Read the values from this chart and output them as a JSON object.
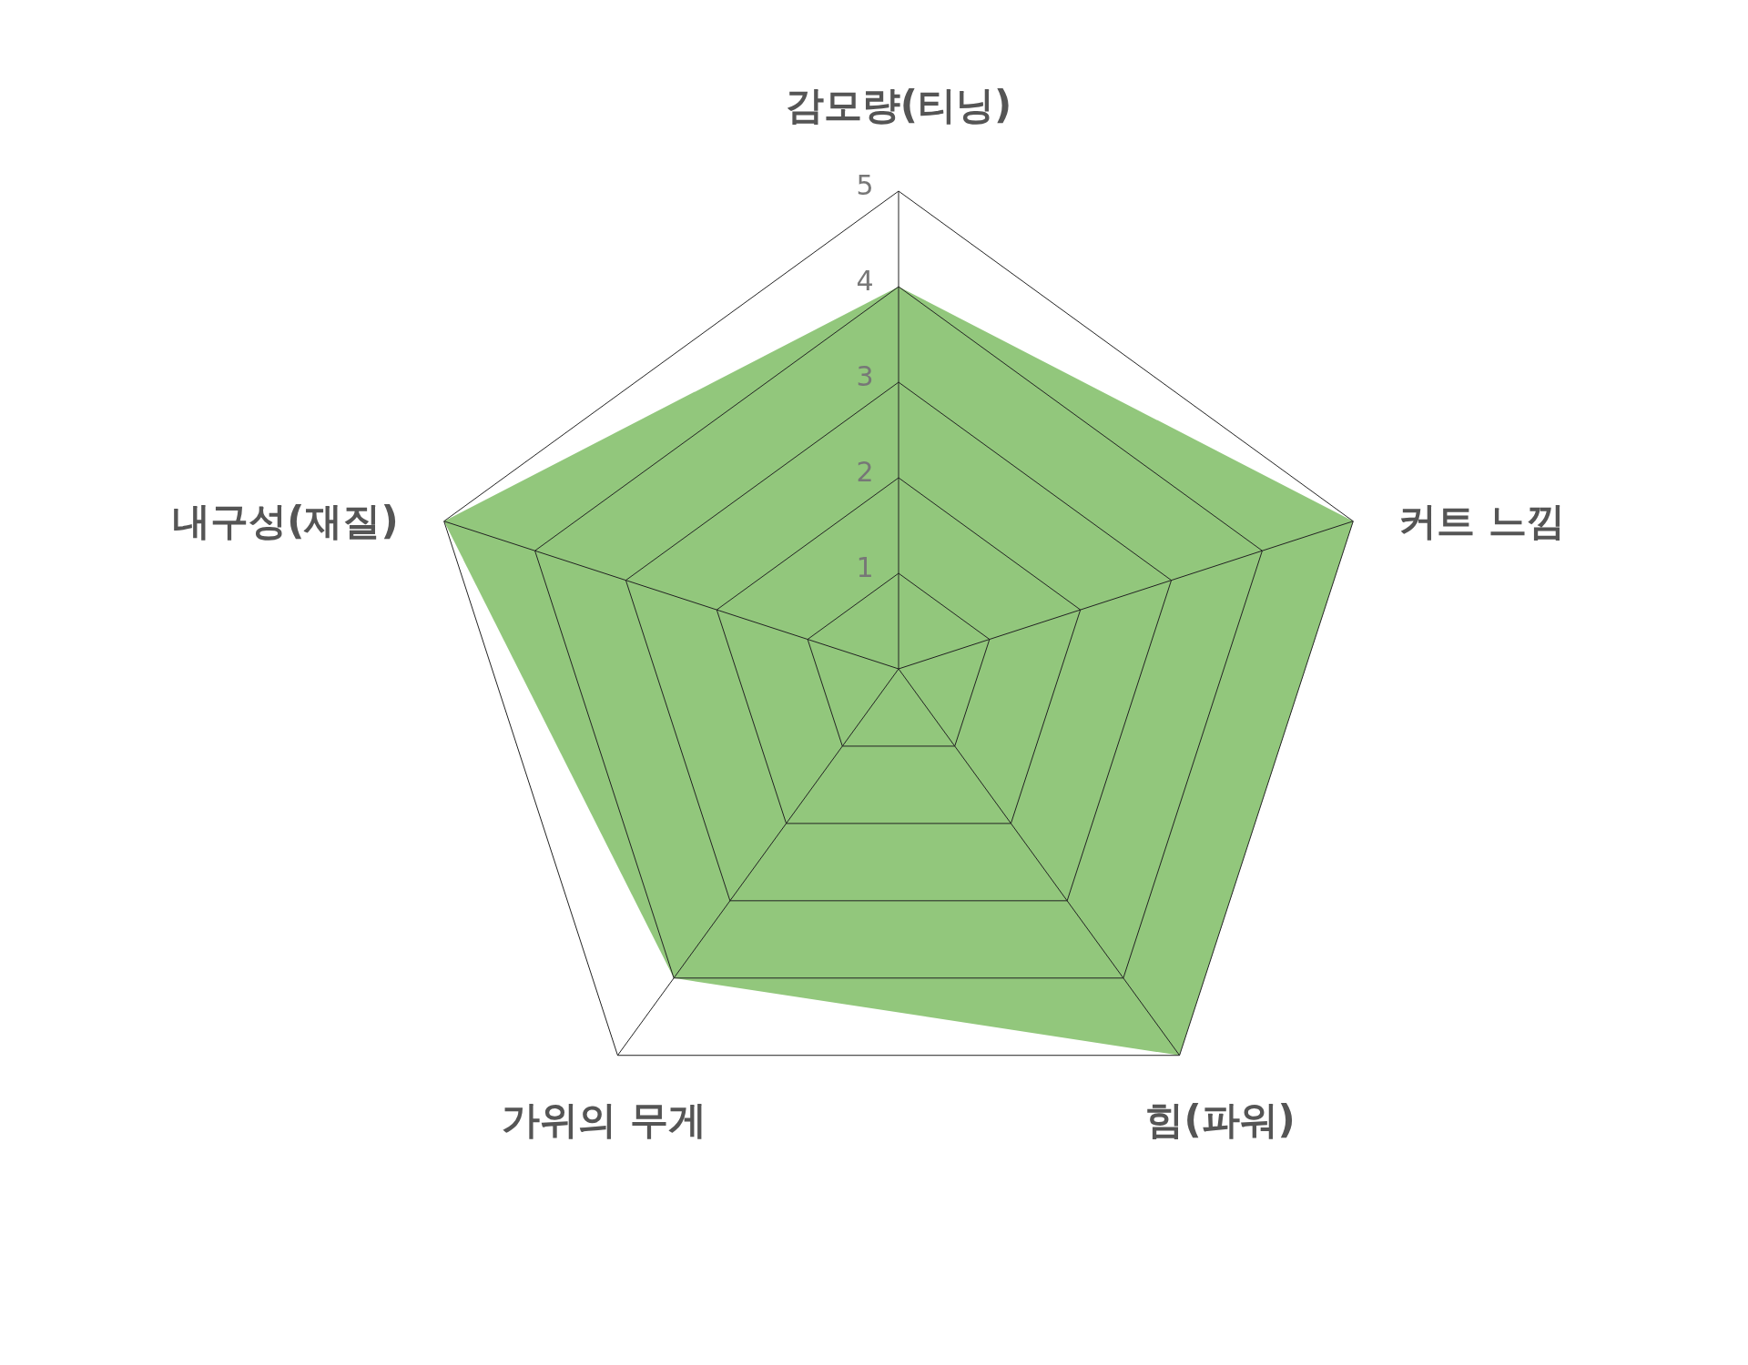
{
  "chart_data": {
    "type": "radar",
    "categories": [
      "감모량(티닝)",
      "커트 느낌",
      "힘(파워)",
      "가위의 무게",
      "내구성(재질)"
    ],
    "series": [
      {
        "color": "#92c77c",
        "values": [
          4,
          5,
          5,
          4,
          5
        ]
      }
    ],
    "ylim": [
      0,
      5
    ],
    "yticks": [
      1,
      2,
      3,
      4,
      5
    ],
    "grid": true
  }
}
